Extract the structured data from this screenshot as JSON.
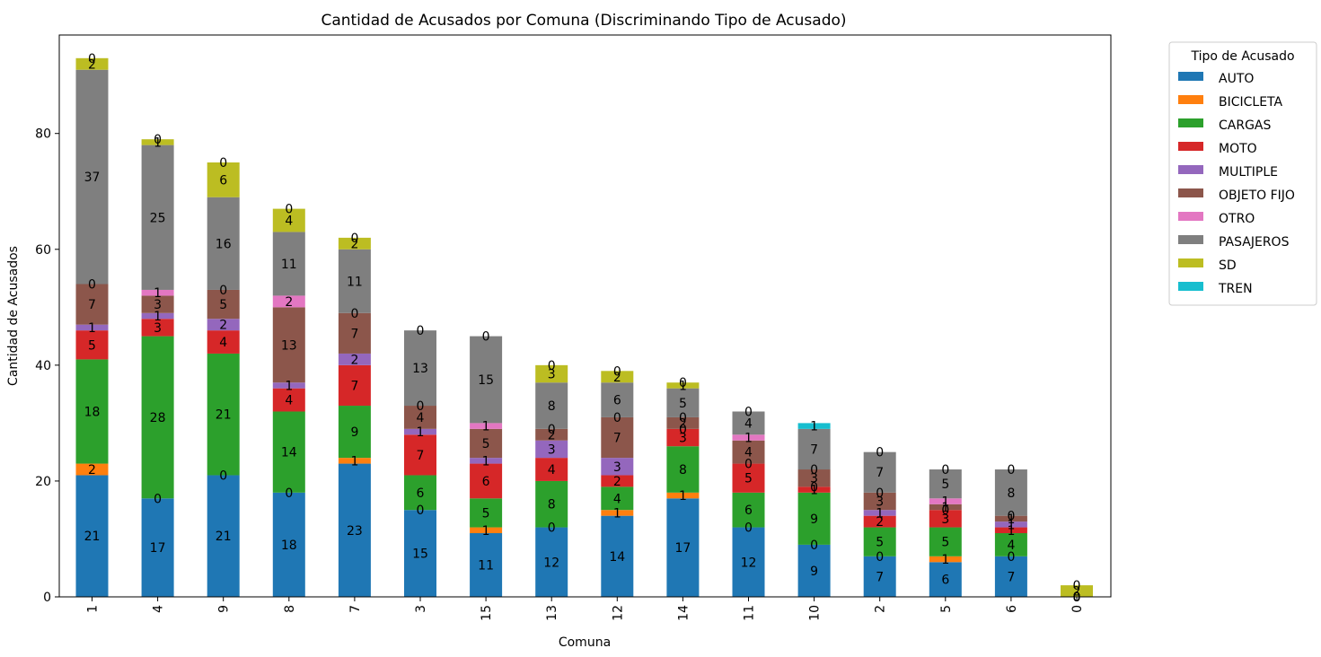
{
  "chart_data": {
    "type": "bar",
    "stacked": true,
    "title": "Cantidad de Acusados por Comuna (Discriminando Tipo de Acusado)",
    "xlabel": "Comuna",
    "ylabel": "Cantidad de Acusados",
    "ylim": [
      0,
      97
    ],
    "yticks": [
      0,
      20,
      40,
      60,
      80
    ],
    "grid": false,
    "legend": {
      "title": "Tipo de Acusado",
      "placement": "outside-top-right"
    },
    "categories": [
      "1",
      "4",
      "9",
      "8",
      "7",
      "3",
      "15",
      "13",
      "12",
      "14",
      "11",
      "10",
      "2",
      "5",
      "6",
      "0"
    ],
    "series": [
      {
        "name": "AUTO",
        "color": "#1f77b4",
        "values": [
          21,
          17,
          21,
          18,
          23,
          15,
          11,
          12,
          14,
          17,
          12,
          9,
          7,
          6,
          7,
          0
        ]
      },
      {
        "name": "BICICLETA",
        "color": "#ff7f0e",
        "values": [
          2,
          0,
          0,
          0,
          1,
          0,
          1,
          0,
          1,
          1,
          0,
          0,
          0,
          1,
          0,
          0
        ]
      },
      {
        "name": "CARGAS",
        "color": "#2ca02c",
        "values": [
          18,
          28,
          21,
          14,
          9,
          6,
          5,
          8,
          4,
          8,
          6,
          9,
          5,
          5,
          4,
          0
        ]
      },
      {
        "name": "MOTO",
        "color": "#d62728",
        "values": [
          5,
          3,
          4,
          4,
          7,
          7,
          6,
          4,
          2,
          3,
          5,
          1,
          2,
          3,
          1,
          0
        ]
      },
      {
        "name": "MULTIPLE",
        "color": "#9467bd",
        "values": [
          1,
          1,
          2,
          1,
          2,
          1,
          1,
          3,
          3,
          0,
          0,
          0,
          1,
          0,
          1,
          0
        ]
      },
      {
        "name": "OBJETO FIJO",
        "color": "#8c564b",
        "values": [
          7,
          3,
          5,
          13,
          7,
          4,
          5,
          2,
          7,
          2,
          4,
          3,
          3,
          1,
          1,
          0
        ]
      },
      {
        "name": "OTRO",
        "color": "#e377c2",
        "values": [
          0,
          1,
          0,
          2,
          0,
          0,
          1,
          0,
          0,
          0,
          1,
          0,
          0,
          1,
          0,
          0
        ]
      },
      {
        "name": "PASAJEROS",
        "color": "#7f7f7f",
        "values": [
          37,
          25,
          16,
          11,
          11,
          13,
          15,
          8,
          6,
          5,
          4,
          7,
          7,
          5,
          8,
          0
        ]
      },
      {
        "name": "SD",
        "color": "#bcbd22",
        "values": [
          2,
          1,
          6,
          4,
          2,
          0,
          0,
          3,
          2,
          1,
          0,
          0,
          0,
          0,
          0,
          2
        ]
      },
      {
        "name": "TREN",
        "color": "#17becf",
        "values": [
          0,
          0,
          0,
          0,
          0,
          0,
          0,
          0,
          0,
          0,
          0,
          1,
          0,
          0,
          0,
          0
        ]
      }
    ],
    "labels_shown_for_zero": [
      "AUTO",
      "BICICLETA",
      "CARGAS",
      "MOTO",
      "MULTIPLE",
      "OBJETO FIJO",
      "OTRO",
      "PASAJEROS",
      "TREN"
    ]
  }
}
